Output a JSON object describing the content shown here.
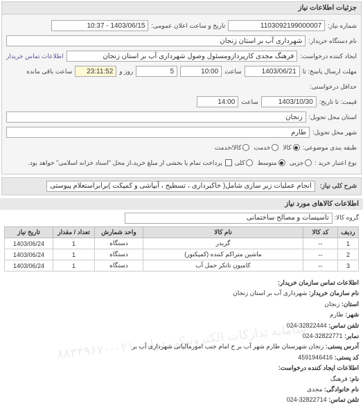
{
  "panel_title": "جزئیات اطلاعات نیاز",
  "header": {
    "number_label": "شماره نیاز:",
    "number_value": "1103092199000007",
    "public_datetime_label": "تاریخ و ساعت اعلان عمومی:",
    "public_datetime_value": "1403/06/15 - 10:37",
    "buyer_label": "نام دستگاه خریدار:",
    "buyer_value": "شهرداری آب بر استان زنجان",
    "requester_label": "ایجاد کننده درخواست:",
    "requester_value": "فرهنگ مجدی کارپردازومسئول وصول شهرداری آب بر استان زنجان",
    "contact_link": "اطلاعات تماس خریدار"
  },
  "deadlines": {
    "response_deadline_label": "مهلت ارسال پاسخ: تا",
    "response_date": "1403/06/21",
    "time_label": "ساعت",
    "response_time": "10:00",
    "days_remaining": "5",
    "days_label": "روز و",
    "countdown": "23:11:52",
    "remaining_label": "ساعت باقی مانده",
    "at_least_label": "حداقل درخواستی:",
    "validity_label": "قیمت: تا تاریخ:",
    "validity_date": "1403/10/30",
    "validity_time": "14:00"
  },
  "location": {
    "province_label": "استان محل تحویل:",
    "province_value": "زنجان",
    "city_label": "شهر محل تحویل:",
    "city_value": "طارم"
  },
  "classification": {
    "subject_type_label": "طبقه بندی موضوعی:",
    "options": [
      "کالا",
      "خدمت",
      "کالا/خدمت"
    ],
    "selected": 0
  },
  "purchase_type": {
    "label": "نوع اعتبار خرید :",
    "options": [
      "جزیی",
      "متوسط",
      "کلی"
    ],
    "selected": 1,
    "installment_label": "پرداخت تمام یا بخشی از مبلغ خرید،از محل \"اسناد خزانه اسلامی\" خواهد بود.",
    "checked": false
  },
  "need_desc": {
    "label": "شرح کلی نیاز:",
    "value": "انجام عملیات زیر سازی شامل( خاکبرداری ، تسطیح ، آبپاشی و کمپکت )برابراستعلام پیوستی"
  },
  "goods_section_title": "اطلاعات کالاهای مورد نیاز",
  "goods_group_label": "گروه کالا:",
  "goods_group_value": "تاسیسات و مصالح ساختمانی",
  "table": {
    "columns": [
      "ردیف",
      "کد کالا",
      "نام کالا",
      "واحد شمارش",
      "تعداد / مقدار",
      "تاریخ نیاز"
    ],
    "rows": [
      [
        "1",
        "--",
        "گریدر",
        "دستگاه",
        "1",
        "1403/06/24"
      ],
      [
        "2",
        "--",
        "ماشین متراکم کننده (کمپکتور)",
        "دستگاه",
        "1",
        "1403/06/24"
      ],
      [
        "3",
        "--",
        "کامیون تانکر حمل آب",
        "دستگاه",
        "1",
        "1403/06/24"
      ]
    ],
    "col_widths": [
      "30px",
      "50px",
      "auto",
      "70px",
      "60px",
      "70px"
    ]
  },
  "contact": {
    "title": "اطلاعات تماس سازمان خریدار:",
    "org_label": "نام سازمان خریدار:",
    "org_value": "شهرداری آب بر استان زنجان",
    "province_label": "استان:",
    "province_value": "زنجان",
    "city_label": "شهر:",
    "city_value": "طارم",
    "phone_label": "تلفن تماس:",
    "phone_value": "32822444-024",
    "fax_label": "نمابر:",
    "fax_value": "32822771-024",
    "postal_addr_label": "آدرس پستی:",
    "postal_addr_value": "زنجان شهرستان طارم شهر آب بر خ امام جنب امورمالیاتی شهرداری آب بر",
    "postal_code_label": "کد پستی:",
    "postal_code_value": "4591946416",
    "creator_title": "اطلاعات ایجاد کننده درخواست:",
    "fname_label": "نام:",
    "fname_value": "فرهنگ",
    "lname_label": "نام خانوادگی:",
    "lname_value": "مجدی",
    "cphone_label": "تلفن تماس:",
    "cphone_value": "32822714-024",
    "watermark": "سامانه تدارکات الکترونیکی دولت\n۰۲۱-۸۸۳۴۹۶۷۰"
  }
}
